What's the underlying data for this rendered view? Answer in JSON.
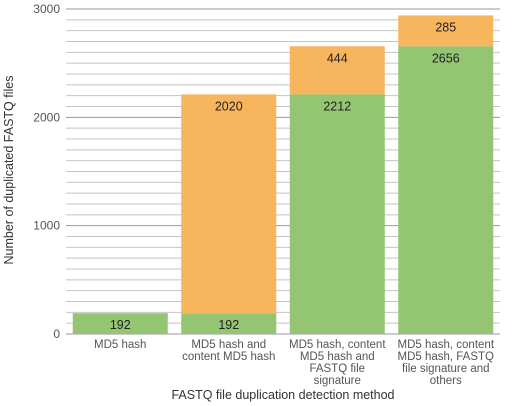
{
  "chart_data": {
    "type": "bar",
    "stacked": true,
    "categories": [
      [
        "MD5 hash"
      ],
      [
        "MD5 hash and",
        "content MD5 hash"
      ],
      [
        "MD5 hash, content",
        "MD5 hash and",
        "FASTQ file",
        "signature"
      ],
      [
        "MD5 hash, content",
        "MD5 hash, FASTQ",
        "file signature and",
        "others"
      ]
    ],
    "series": [
      {
        "color": "#93c572",
        "values": [
          192,
          192,
          2212,
          2656
        ]
      },
      {
        "color": "#f7b55e",
        "values": [
          0,
          2020,
          444,
          285
        ]
      }
    ],
    "data_labels": [
      [
        "192",
        "192",
        "2212",
        "2656"
      ],
      [
        "",
        "2020",
        "444",
        "285"
      ]
    ],
    "xlabel": "FASTQ file duplication detection method",
    "ylabel": "Number of duplicated FASTQ files",
    "ylim": [
      0,
      3000
    ],
    "yticks": [
      0,
      1000,
      2000,
      3000
    ],
    "minor_gridline_step": 100,
    "grid": true,
    "legend": "none"
  }
}
